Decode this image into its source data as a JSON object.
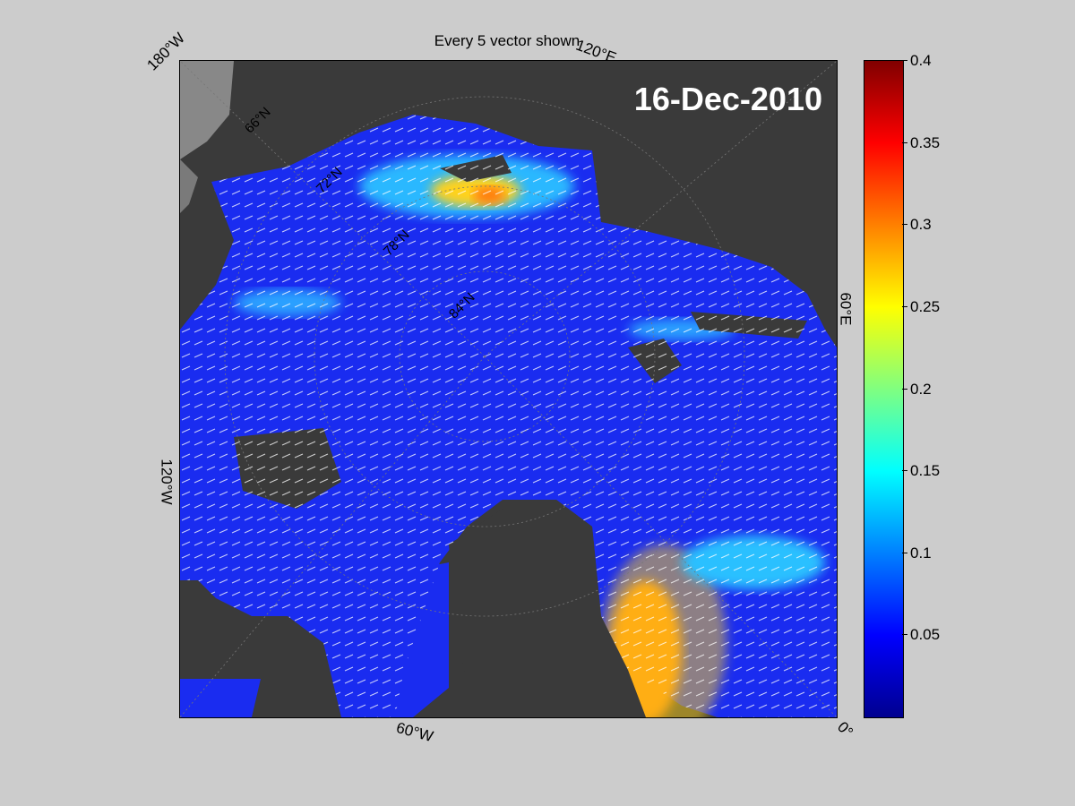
{
  "figure": {
    "title": "Every 5 vector shown",
    "date_label": "16-Dec-2010"
  },
  "map": {
    "projection": "north polar stereographic",
    "longitude_labels": [
      "180°W",
      "120°E",
      "60°E",
      "0°",
      "60°W",
      "120°W"
    ],
    "latitude_labels": [
      "66°N",
      "72°N",
      "78°N",
      "84°N"
    ],
    "land_color": "#3a3a3a",
    "vector_color": "#ffffff"
  },
  "colorbar": {
    "colormap": "jet",
    "range": [
      0,
      0.4
    ],
    "ticks": [
      "0.4",
      "0.35",
      "0.3",
      "0.25",
      "0.2",
      "0.15",
      "0.1",
      "0.05"
    ]
  }
}
